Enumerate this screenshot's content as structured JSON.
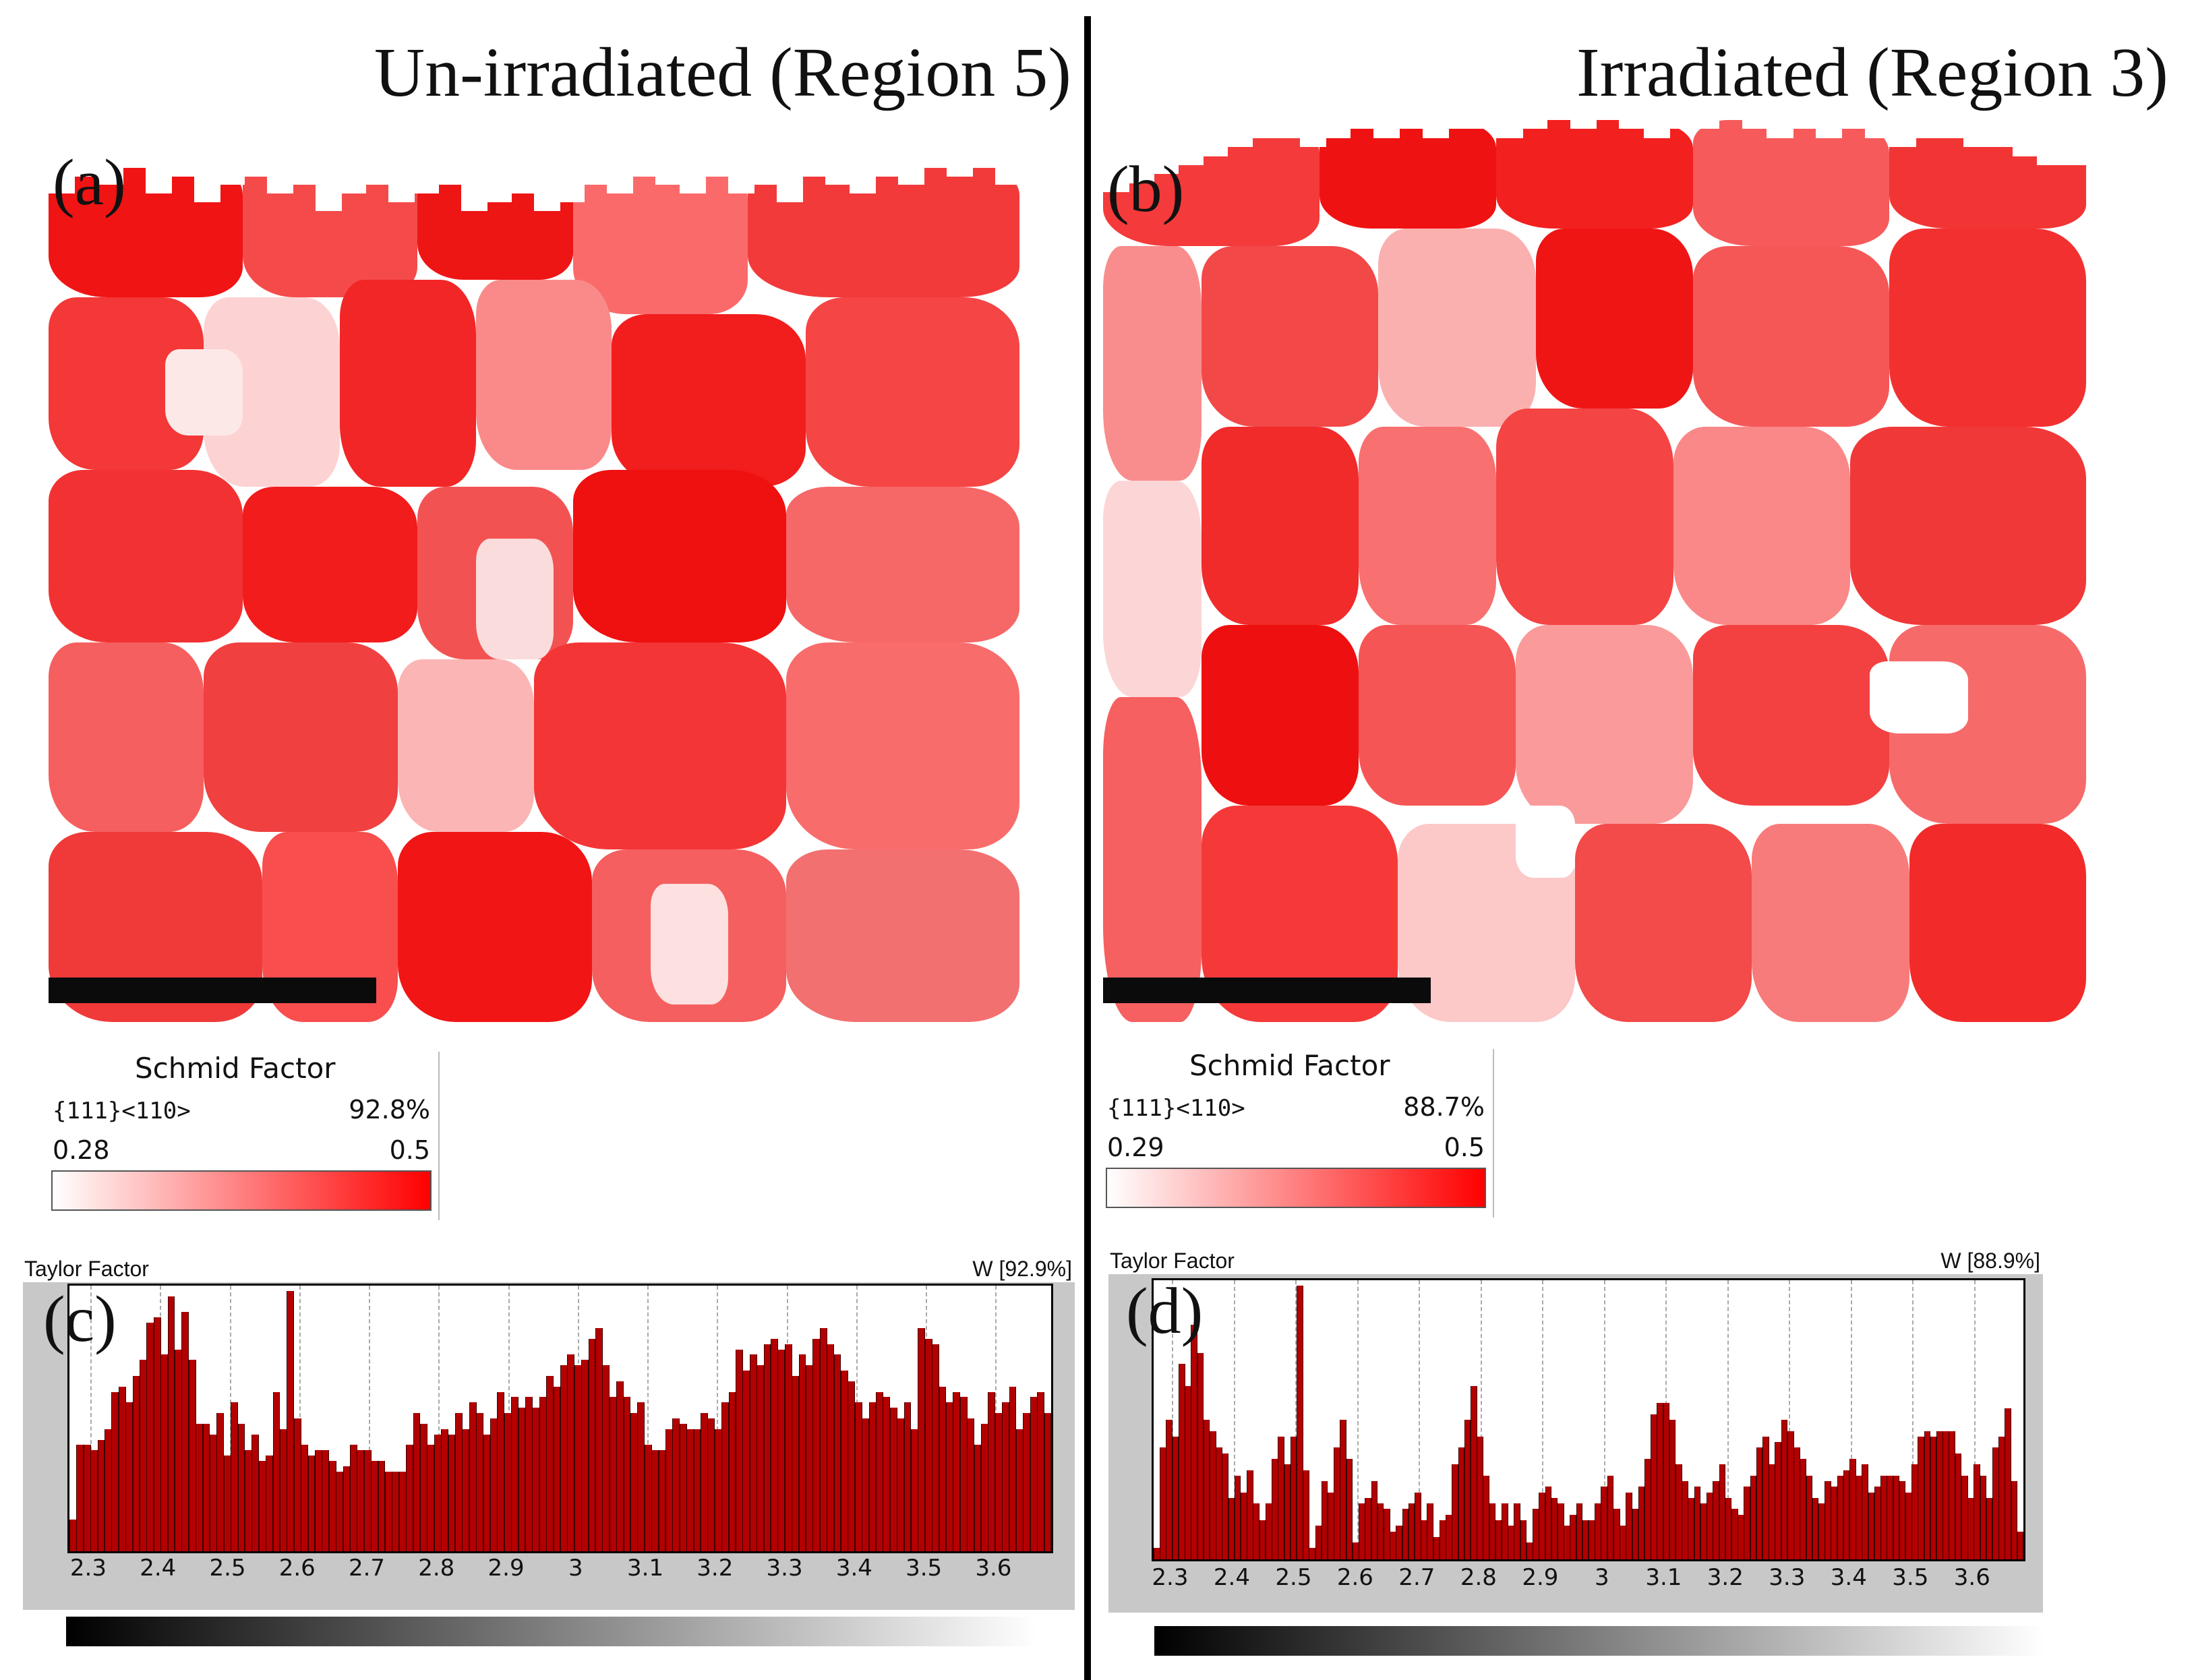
{
  "panels": {
    "left": {
      "title": "Un-irradiated (Region 5)",
      "map_label": "(a)",
      "hist_label": "(c)",
      "legend": {
        "title": "Schmid Factor",
        "system": "{111}<110>",
        "percent": "92.8%",
        "min": "0.28",
        "max": "0.5"
      },
      "taylor": {
        "title": "Taylor Factor",
        "weight": "W [92.9%]",
        "ticks": [
          "2.3",
          "2.4",
          "2.5",
          "2.6",
          "2.7",
          "2.8",
          "2.9",
          "3",
          "3.1",
          "3.2",
          "3.3",
          "3.4",
          "3.5",
          "3.6"
        ],
        "range": [
          2.27,
          3.68
        ],
        "values": [
          12,
          40,
          40,
          38,
          42,
          46,
          60,
          62,
          56,
          66,
          72,
          86,
          88,
          74,
          96,
          76,
          90,
          72,
          48,
          48,
          44,
          52,
          36,
          56,
          48,
          38,
          44,
          34,
          36,
          60,
          46,
          98,
          50,
          40,
          36,
          38,
          38,
          34,
          30,
          32,
          40,
          38,
          38,
          34,
          34,
          30,
          30,
          30,
          40,
          52,
          48,
          40,
          44,
          46,
          44,
          52,
          46,
          56,
          52,
          44,
          50,
          60,
          52,
          58,
          54,
          58,
          54,
          58,
          66,
          62,
          70,
          74,
          70,
          72,
          80,
          84,
          70,
          58,
          64,
          58,
          52,
          56,
          40,
          38,
          38,
          46,
          50,
          48,
          46,
          46,
          52,
          50,
          46,
          56,
          60,
          76,
          68,
          74,
          70,
          78,
          80,
          76,
          78,
          66,
          74,
          70,
          80,
          84,
          78,
          74,
          68,
          64,
          56,
          50,
          56,
          60,
          58,
          54,
          50,
          56,
          46,
          84,
          80,
          78,
          62,
          56,
          60,
          58,
          50,
          40,
          48,
          60,
          52,
          56,
          62,
          46,
          52,
          58,
          60,
          52
        ]
      },
      "grains": [
        {
          "l": 0,
          "t": 0,
          "w": 20,
          "h": 16,
          "c": "#f01414"
        },
        {
          "l": 20,
          "t": 0,
          "w": 18,
          "h": 16,
          "c": "#f54a4a"
        },
        {
          "l": 38,
          "t": 0,
          "w": 16,
          "h": 14,
          "c": "#ee1515"
        },
        {
          "l": 54,
          "t": 0,
          "w": 18,
          "h": 18,
          "c": "#fb6a6a"
        },
        {
          "l": 72,
          "t": 0,
          "w": 28,
          "h": 16,
          "c": "#f23a3a"
        },
        {
          "l": 0,
          "t": 16,
          "w": 16,
          "h": 20,
          "c": "#f43737"
        },
        {
          "l": 16,
          "t": 16,
          "w": 14,
          "h": 22,
          "c": "#fcd2d2"
        },
        {
          "l": 30,
          "t": 14,
          "w": 14,
          "h": 24,
          "c": "#f22626"
        },
        {
          "l": 44,
          "t": 14,
          "w": 14,
          "h": 22,
          "c": "#fa8a8a"
        },
        {
          "l": 58,
          "t": 18,
          "w": 20,
          "h": 20,
          "c": "#f21d1d"
        },
        {
          "l": 78,
          "t": 16,
          "w": 22,
          "h": 22,
          "c": "#f54545"
        },
        {
          "l": 0,
          "t": 36,
          "w": 20,
          "h": 20,
          "c": "#f23232"
        },
        {
          "l": 20,
          "t": 38,
          "w": 18,
          "h": 18,
          "c": "#f21c1c"
        },
        {
          "l": 38,
          "t": 38,
          "w": 16,
          "h": 20,
          "c": "#f35252"
        },
        {
          "l": 54,
          "t": 36,
          "w": 22,
          "h": 20,
          "c": "#ef1010"
        },
        {
          "l": 76,
          "t": 38,
          "w": 24,
          "h": 18,
          "c": "#f66767"
        },
        {
          "l": 0,
          "t": 56,
          "w": 16,
          "h": 22,
          "c": "#f65f5f"
        },
        {
          "l": 16,
          "t": 56,
          "w": 20,
          "h": 22,
          "c": "#f04040"
        },
        {
          "l": 36,
          "t": 58,
          "w": 14,
          "h": 20,
          "c": "#fbb5b5"
        },
        {
          "l": 50,
          "t": 56,
          "w": 26,
          "h": 24,
          "c": "#f33535"
        },
        {
          "l": 76,
          "t": 56,
          "w": 24,
          "h": 24,
          "c": "#f96c6c"
        },
        {
          "l": 0,
          "t": 78,
          "w": 22,
          "h": 22,
          "c": "#f03a3a"
        },
        {
          "l": 22,
          "t": 78,
          "w": 14,
          "h": 22,
          "c": "#f84e4e"
        },
        {
          "l": 36,
          "t": 78,
          "w": 20,
          "h": 22,
          "c": "#f21515"
        },
        {
          "l": 56,
          "t": 80,
          "w": 20,
          "h": 20,
          "c": "#f55f5f"
        },
        {
          "l": 76,
          "t": 80,
          "w": 24,
          "h": 20,
          "c": "#f27070"
        },
        {
          "l": 44,
          "t": 44,
          "w": 8,
          "h": 14,
          "c": "#fbdcdc"
        },
        {
          "l": 12,
          "t": 22,
          "w": 8,
          "h": 10,
          "c": "#fde8e8"
        },
        {
          "l": 62,
          "t": 84,
          "w": 8,
          "h": 14,
          "c": "#fde0e0"
        }
      ],
      "surface": [
        4,
        2,
        3,
        1,
        4,
        2,
        5,
        3,
        2,
        4,
        3,
        6,
        4,
        3,
        5,
        4,
        3,
        6,
        5,
        4,
        6,
        5,
        3,
        4,
        2,
        3,
        4,
        2,
        4,
        3,
        5,
        2,
        3,
        4,
        2,
        3,
        1,
        2,
        1,
        3
      ]
    },
    "right": {
      "title": "Irradiated (Region 3)",
      "map_label": "(b)",
      "hist_label": "(d)",
      "legend": {
        "title": "Schmid Factor",
        "system": "{111}<110>",
        "percent": "88.7%",
        "min": "0.29",
        "max": "0.5"
      },
      "taylor": {
        "title": "Taylor Factor",
        "weight": "W [88.9%]",
        "ticks": [
          "2.3",
          "2.4",
          "2.5",
          "2.6",
          "2.7",
          "2.8",
          "2.9",
          "3",
          "3.1",
          "3.2",
          "3.3",
          "3.4",
          "3.5",
          "3.6"
        ],
        "range": [
          2.27,
          3.68
        ],
        "values": [
          4,
          40,
          50,
          44,
          70,
          62,
          84,
          74,
          50,
          46,
          40,
          38,
          22,
          30,
          24,
          32,
          20,
          14,
          20,
          36,
          44,
          34,
          44,
          98,
          32,
          4,
          12,
          28,
          24,
          40,
          50,
          36,
          6,
          20,
          22,
          28,
          20,
          18,
          10,
          12,
          18,
          20,
          24,
          14,
          20,
          8,
          14,
          16,
          34,
          40,
          50,
          62,
          44,
          30,
          20,
          14,
          20,
          12,
          20,
          14,
          6,
          18,
          24,
          26,
          22,
          20,
          12,
          16,
          20,
          14,
          14,
          20,
          26,
          30,
          18,
          12,
          24,
          18,
          26,
          36,
          52,
          56,
          56,
          50,
          34,
          28,
          22,
          26,
          20,
          24,
          28,
          34,
          22,
          18,
          16,
          26,
          30,
          40,
          44,
          34,
          42,
          50,
          46,
          40,
          36,
          30,
          22,
          20,
          28,
          26,
          30,
          32,
          36,
          30,
          34,
          24,
          26,
          30,
          30,
          30,
          28,
          24,
          34,
          44,
          46,
          44,
          46,
          46,
          46,
          38,
          30,
          22,
          34,
          30,
          22,
          40,
          44,
          54,
          28,
          10
        ]
      },
      "grains": [
        {
          "l": 0,
          "t": 0,
          "w": 22,
          "h": 14,
          "c": "#f43a3a"
        },
        {
          "l": 22,
          "t": 0,
          "w": 18,
          "h": 12,
          "c": "#ef1212"
        },
        {
          "l": 40,
          "t": 0,
          "w": 20,
          "h": 12,
          "c": "#f32020"
        },
        {
          "l": 60,
          "t": 0,
          "w": 20,
          "h": 14,
          "c": "#f65a5a"
        },
        {
          "l": 80,
          "t": 0,
          "w": 20,
          "h": 12,
          "c": "#f13535"
        },
        {
          "l": 0,
          "t": 14,
          "w": 10,
          "h": 26,
          "c": "#f98d8d"
        },
        {
          "l": 10,
          "t": 14,
          "w": 18,
          "h": 20,
          "c": "#f24848"
        },
        {
          "l": 28,
          "t": 12,
          "w": 16,
          "h": 22,
          "c": "#fbb0b0"
        },
        {
          "l": 44,
          "t": 12,
          "w": 16,
          "h": 20,
          "c": "#ef1515"
        },
        {
          "l": 60,
          "t": 14,
          "w": 20,
          "h": 20,
          "c": "#f55757"
        },
        {
          "l": 80,
          "t": 12,
          "w": 20,
          "h": 22,
          "c": "#f33030"
        },
        {
          "l": 0,
          "t": 40,
          "w": 10,
          "h": 24,
          "c": "#fcd6d6"
        },
        {
          "l": 10,
          "t": 34,
          "w": 16,
          "h": 22,
          "c": "#f12a2a"
        },
        {
          "l": 26,
          "t": 34,
          "w": 14,
          "h": 22,
          "c": "#f87070"
        },
        {
          "l": 40,
          "t": 32,
          "w": 18,
          "h": 24,
          "c": "#f44444"
        },
        {
          "l": 58,
          "t": 34,
          "w": 18,
          "h": 22,
          "c": "#fa8888"
        },
        {
          "l": 76,
          "t": 34,
          "w": 24,
          "h": 22,
          "c": "#f03838"
        },
        {
          "l": 10,
          "t": 56,
          "w": 16,
          "h": 20,
          "c": "#ee1010"
        },
        {
          "l": 26,
          "t": 56,
          "w": 16,
          "h": 20,
          "c": "#f65555"
        },
        {
          "l": 42,
          "t": 56,
          "w": 18,
          "h": 22,
          "c": "#fa9a9a"
        },
        {
          "l": 60,
          "t": 56,
          "w": 20,
          "h": 20,
          "c": "#f34141"
        },
        {
          "l": 80,
          "t": 56,
          "w": 20,
          "h": 22,
          "c": "#f66a6a"
        },
        {
          "l": 0,
          "t": 64,
          "w": 10,
          "h": 36,
          "c": "#f66060"
        },
        {
          "l": 10,
          "t": 76,
          "w": 20,
          "h": 24,
          "c": "#f53939"
        },
        {
          "l": 30,
          "t": 78,
          "w": 18,
          "h": 22,
          "c": "#fcc8c8"
        },
        {
          "l": 48,
          "t": 78,
          "w": 18,
          "h": 22,
          "c": "#f34a4a"
        },
        {
          "l": 66,
          "t": 78,
          "w": 16,
          "h": 22,
          "c": "#f87b7b"
        },
        {
          "l": 82,
          "t": 78,
          "w": 18,
          "h": 22,
          "c": "#f22a2a"
        },
        {
          "l": 78,
          "t": 60,
          "w": 10,
          "h": 8,
          "c": "#ffffff"
        },
        {
          "l": 42,
          "t": 76,
          "w": 6,
          "h": 8,
          "c": "#ffffff"
        }
      ],
      "surface": [
        8,
        7,
        6,
        5,
        4,
        3,
        2,
        2,
        3,
        2,
        1,
        2,
        1,
        2,
        1,
        1,
        2,
        1,
        0,
        1,
        0,
        1,
        2,
        1,
        1,
        0,
        1,
        2,
        1,
        2,
        1,
        2,
        3,
        2,
        2,
        3,
        3,
        4,
        5,
        5
      ]
    }
  }
}
